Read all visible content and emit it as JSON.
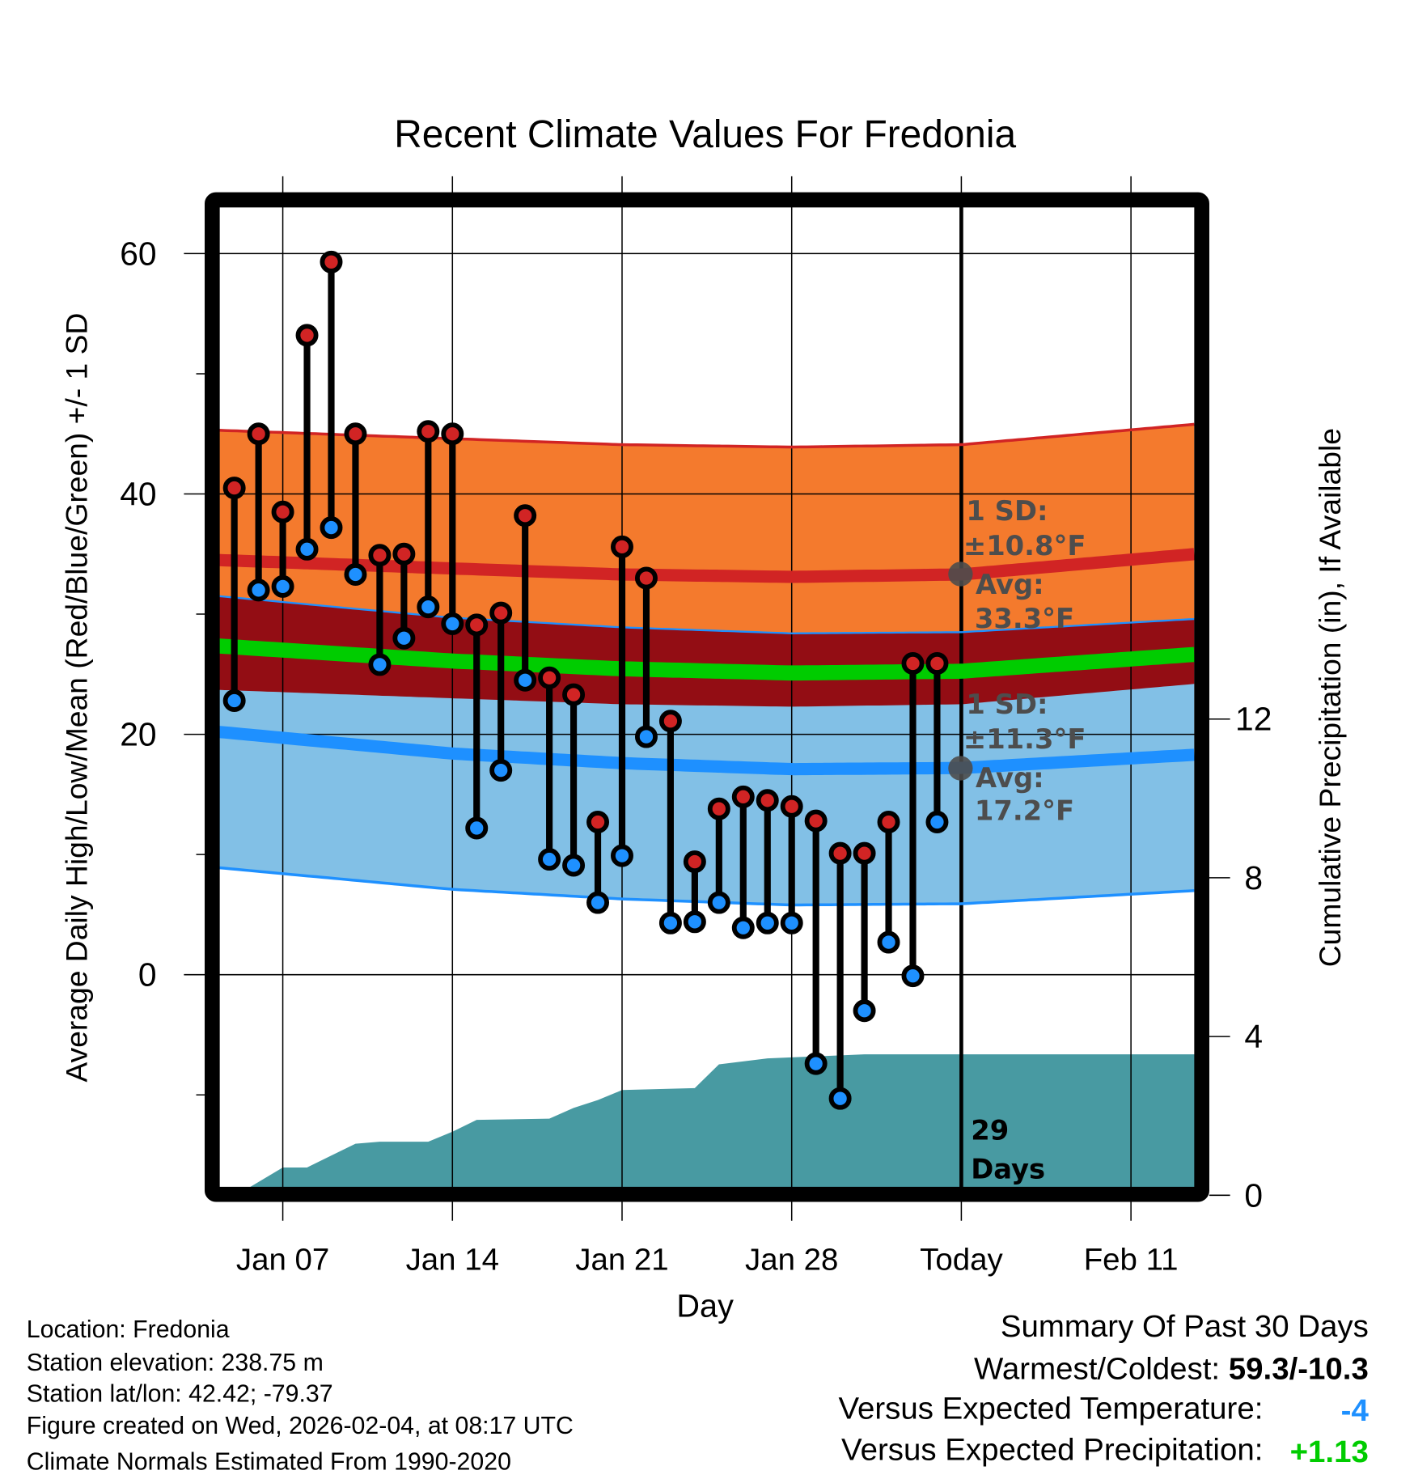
{
  "chart_data": {
    "type": "line",
    "title": "Recent Climate Values For Fredonia",
    "xlabel": "Day",
    "ylabel": "Average Daily High/Low/Mean (Red/Blue/Green) +/- 1 SD",
    "y2label": "Cumulative Precipitation (in), If Available",
    "ylim": [
      -18.3,
      64.5
    ],
    "y2lim": [
      0,
      24.6
    ],
    "yticks": [
      "60",
      "40",
      "20",
      "0"
    ],
    "yticks_values": [
      60,
      40,
      20,
      0
    ],
    "y2ticks": [
      "12",
      "8",
      "4",
      "0"
    ],
    "y2ticks_values": [
      12,
      8,
      4,
      0
    ],
    "xticks": [
      "Jan 07",
      "Jan 14",
      "Jan 21",
      "Jan 28",
      "Today",
      "Feb 11"
    ],
    "xticks_day_of_year": [
      7,
      14,
      21,
      28,
      35,
      42
    ],
    "xlim_day_of_year": [
      4.36,
      44.65
    ],
    "today_day_of_year": 35,
    "observed": {
      "day_of_year": [
        5,
        6,
        7,
        8,
        9,
        10,
        11,
        12,
        13,
        14,
        15,
        16,
        17,
        18,
        19,
        20,
        21,
        22,
        23,
        24,
        25,
        26,
        27,
        28,
        29,
        30,
        31,
        32,
        33,
        34
      ],
      "high": [
        40.5,
        45.0,
        38.5,
        53.2,
        59.3,
        45.0,
        34.9,
        35.0,
        45.2,
        45.0,
        29.1,
        30.1,
        38.2,
        24.7,
        23.3,
        12.7,
        35.6,
        33.0,
        21.1,
        9.4,
        13.8,
        14.8,
        14.5,
        14.0,
        12.8,
        10.1,
        10.1,
        12.7,
        25.9,
        25.9
      ],
      "low": [
        22.8,
        32.0,
        32.3,
        35.4,
        37.2,
        33.3,
        25.8,
        28.0,
        30.6,
        29.2,
        12.2,
        17.0,
        24.5,
        9.6,
        9.1,
        6.0,
        9.9,
        19.8,
        4.3,
        4.4,
        6.0,
        3.9,
        4.3,
        4.3,
        -7.4,
        -10.3,
        -3.0,
        2.7,
        -0.1,
        12.7
      ]
    },
    "normals": {
      "day_of_year": [
        4.36,
        14,
        21,
        28,
        35,
        44.65
      ],
      "high_avg": [
        34.5,
        33.8,
        33.3,
        33.1,
        33.3,
        35.0
      ],
      "high_sd": 10.8,
      "low_avg": [
        20.2,
        18.4,
        17.6,
        17.1,
        17.2,
        18.3
      ],
      "low_sd": 11.3
    },
    "precipitation": {
      "day_of_year": [
        4.36,
        5.6,
        7,
        8,
        9,
        10,
        11,
        13,
        14,
        15,
        18,
        19,
        20,
        21,
        24,
        25,
        27,
        31,
        44.65
      ],
      "cumulative_in": [
        0.15,
        0.15,
        0.7,
        0.7,
        1.0,
        1.3,
        1.35,
        1.35,
        1.6,
        1.9,
        1.93,
        2.2,
        2.4,
        2.65,
        2.7,
        3.3,
        3.45,
        3.55,
        3.55
      ]
    },
    "annotations": {
      "high_sd_label": "1 SD:",
      "high_sd_value": "±10.8°F",
      "high_avg_label": "Avg:",
      "high_avg_value": "33.3°F",
      "low_sd_label": "1 SD:",
      "low_sd_value": "±11.3°F",
      "low_avg_label": "Avg:",
      "low_avg_value": "17.2°F",
      "days_count": "29",
      "days_label": "Days"
    },
    "colors": {
      "high_band": "#f47a2d",
      "overlap_band": "#930d14",
      "low_band": "#82c0e6",
      "high_line": "#d12424",
      "low_line": "#1e90ff",
      "mean_line": "#00cc00",
      "precip": "#489aa2",
      "annotation": "#4d4d4d"
    },
    "grid": true
  },
  "footer": {
    "location": "Location: Fredonia",
    "elevation": "Station elevation: 238.75 m",
    "latlon": "Station lat/lon: 42.42; -79.37",
    "created": "Figure created on Wed, 2026-02-04, at 08:17 UTC",
    "normals": "Climate Normals Estimated From 1990-2020"
  },
  "summary": {
    "title": "Summary Of Past 30 Days",
    "warmest_coldest_label": "Warmest/Coldest: ",
    "warmest_coldest_value": "59.3/-10.3",
    "temp_label": "Versus Expected Temperature:",
    "temp_value": "-4",
    "temp_color": "#1e90ff",
    "precip_label": "Versus Expected Precipitation:",
    "precip_value": "+1.13",
    "precip_color": "#00cc00"
  }
}
